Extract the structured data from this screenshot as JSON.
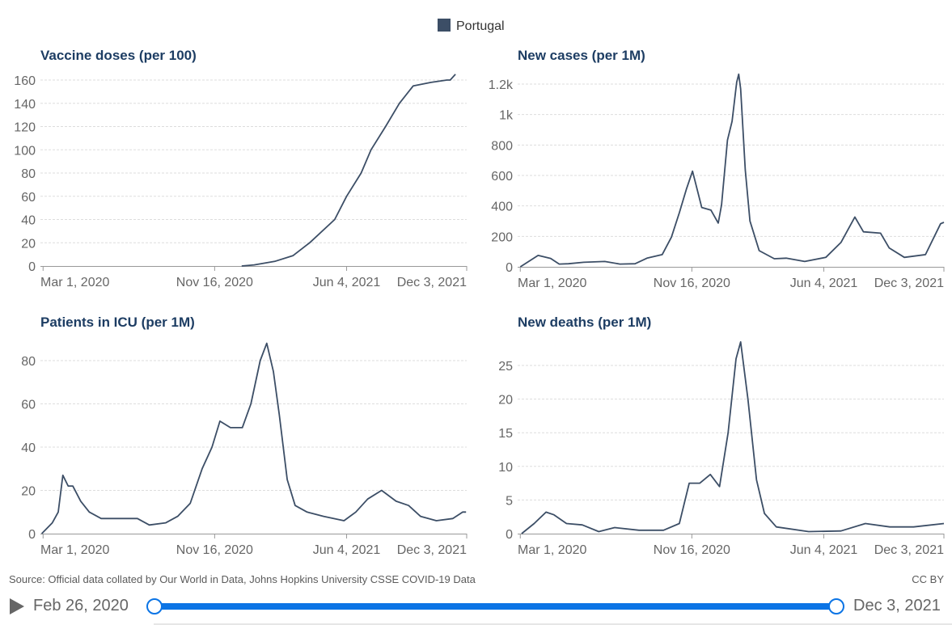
{
  "legend": {
    "label": "Portugal",
    "color": "#3c4e66"
  },
  "footer": {
    "source": "Source: Official data collated by Our World in Data, Johns Hopkins University CSSE COVID-19 Data",
    "license": "CC BY"
  },
  "timeline": {
    "start_label": "Feb 26, 2020",
    "end_label": "Dec 3, 2021",
    "start": "2020-02-26",
    "end": "2021-12-03",
    "accent": "#0b74e5"
  },
  "chart_data": [
    {
      "type": "line",
      "title": "Vaccine doses (per 100)",
      "xlim": [
        "2020-02-26",
        "2021-12-03"
      ],
      "x_ticks": [
        {
          "date": "2020-03-01",
          "label": "Mar 1, 2020"
        },
        {
          "date": "2020-11-16",
          "label": "Nov 16, 2020"
        },
        {
          "date": "2021-06-04",
          "label": "Jun 4, 2021"
        },
        {
          "date": "2021-12-03",
          "label": "Dec 3, 2021"
        }
      ],
      "ylim": [
        0,
        160
      ],
      "y_ticks": [
        {
          "value": 0,
          "label": "0"
        },
        {
          "value": 20,
          "label": "20"
        },
        {
          "value": 40,
          "label": "40"
        },
        {
          "value": 60,
          "label": "60"
        },
        {
          "value": 80,
          "label": "80"
        },
        {
          "value": 100,
          "label": "100"
        },
        {
          "value": 120,
          "label": "120"
        },
        {
          "value": 140,
          "label": "140"
        },
        {
          "value": 160,
          "label": "160"
        }
      ],
      "grid": true,
      "series": [
        {
          "name": "Portugal",
          "points": [
            [
              "2020-12-27",
              0
            ],
            [
              "2021-01-15",
              1
            ],
            [
              "2021-02-15",
              4
            ],
            [
              "2021-03-15",
              9
            ],
            [
              "2021-04-09",
              20
            ],
            [
              "2021-05-17",
              40
            ],
            [
              "2021-06-04",
              60
            ],
            [
              "2021-06-26",
              80
            ],
            [
              "2021-07-11",
              100
            ],
            [
              "2021-08-02",
              120
            ],
            [
              "2021-08-23",
              140
            ],
            [
              "2021-09-13",
              155
            ],
            [
              "2021-10-10",
              158
            ],
            [
              "2021-11-03",
              160
            ],
            [
              "2021-11-08",
              160
            ],
            [
              "2021-11-16",
              165
            ]
          ]
        }
      ]
    },
    {
      "type": "line",
      "title": "New cases (per 1M)",
      "xlim": [
        "2020-02-26",
        "2021-12-03"
      ],
      "x_ticks": [
        {
          "date": "2020-03-01",
          "label": "Mar 1, 2020"
        },
        {
          "date": "2020-11-16",
          "label": "Nov 16, 2020"
        },
        {
          "date": "2021-06-04",
          "label": "Jun 4, 2021"
        },
        {
          "date": "2021-12-03",
          "label": "Dec 3, 2021"
        }
      ],
      "ylim": [
        0,
        1200
      ],
      "y_ticks": [
        {
          "value": 0,
          "label": "0"
        },
        {
          "value": 200,
          "label": "200"
        },
        {
          "value": 400,
          "label": "400"
        },
        {
          "value": 600,
          "label": "600"
        },
        {
          "value": 800,
          "label": "800"
        },
        {
          "value": 1000,
          "label": "1k"
        },
        {
          "value": 1200,
          "label": "1.2k"
        }
      ],
      "grid": true,
      "series": [
        {
          "name": "Portugal",
          "points": [
            [
              "2020-03-01",
              0
            ],
            [
              "2020-03-28",
              75
            ],
            [
              "2020-04-16",
              55
            ],
            [
              "2020-04-29",
              18
            ],
            [
              "2020-05-13",
              20
            ],
            [
              "2020-06-05",
              30
            ],
            [
              "2020-07-07",
              35
            ],
            [
              "2020-07-30",
              18
            ],
            [
              "2020-08-22",
              20
            ],
            [
              "2020-09-09",
              57
            ],
            [
              "2020-10-02",
              80
            ],
            [
              "2020-10-16",
              195
            ],
            [
              "2020-10-28",
              355
            ],
            [
              "2020-11-08",
              513
            ],
            [
              "2020-11-17",
              628
            ],
            [
              "2020-12-01",
              390
            ],
            [
              "2020-12-15",
              372
            ],
            [
              "2020-12-26",
              287
            ],
            [
              "2020-12-31",
              407
            ],
            [
              "2021-01-09",
              832
            ],
            [
              "2021-01-16",
              956
            ],
            [
              "2021-01-23",
              1212
            ],
            [
              "2021-01-26",
              1265
            ],
            [
              "2021-01-29",
              1168
            ],
            [
              "2021-02-05",
              637
            ],
            [
              "2021-02-12",
              301
            ],
            [
              "2021-02-26",
              106
            ],
            [
              "2021-03-21",
              53
            ],
            [
              "2021-04-08",
              57
            ],
            [
              "2021-05-06",
              35
            ],
            [
              "2021-06-07",
              62
            ],
            [
              "2021-06-30",
              160
            ],
            [
              "2021-07-21",
              327
            ],
            [
              "2021-08-03",
              230
            ],
            [
              "2021-08-29",
              221
            ],
            [
              "2021-09-11",
              124
            ],
            [
              "2021-10-04",
              62
            ],
            [
              "2021-11-05",
              80
            ],
            [
              "2021-11-28",
              283
            ],
            [
              "2021-12-03",
              292
            ]
          ]
        }
      ]
    },
    {
      "type": "line",
      "title": "Patients in ICU (per 1M)",
      "xlim": [
        "2020-02-26",
        "2021-12-03"
      ],
      "x_ticks": [
        {
          "date": "2020-03-01",
          "label": "Mar 1, 2020"
        },
        {
          "date": "2020-11-16",
          "label": "Nov 16, 2020"
        },
        {
          "date": "2021-06-04",
          "label": "Jun 4, 2021"
        },
        {
          "date": "2021-12-03",
          "label": "Dec 3, 2021"
        }
      ],
      "ylim": [
        0,
        80
      ],
      "y_ticks": [
        {
          "value": 0,
          "label": "0"
        },
        {
          "value": 20,
          "label": "20"
        },
        {
          "value": 40,
          "label": "40"
        },
        {
          "value": 60,
          "label": "60"
        },
        {
          "value": 80,
          "label": "80"
        }
      ],
      "grid": true,
      "series": [
        {
          "name": "Portugal",
          "points": [
            [
              "2020-02-28",
              0
            ],
            [
              "2020-03-15",
              5
            ],
            [
              "2020-03-24",
              10
            ],
            [
              "2020-03-31",
              27
            ],
            [
              "2020-04-08",
              22
            ],
            [
              "2020-04-15",
              22
            ],
            [
              "2020-04-27",
              15
            ],
            [
              "2020-05-10",
              10
            ],
            [
              "2020-05-28",
              7
            ],
            [
              "2020-06-28",
              7
            ],
            [
              "2020-07-22",
              7
            ],
            [
              "2020-08-09",
              4
            ],
            [
              "2020-09-03",
              5
            ],
            [
              "2020-09-21",
              8
            ],
            [
              "2020-10-10",
              14
            ],
            [
              "2020-10-28",
              30
            ],
            [
              "2020-11-12",
              40
            ],
            [
              "2020-11-24",
              52
            ],
            [
              "2020-12-10",
              49
            ],
            [
              "2020-12-28",
              49
            ],
            [
              "2021-01-10",
              60
            ],
            [
              "2021-01-24",
              80
            ],
            [
              "2021-02-03",
              88
            ],
            [
              "2021-02-13",
              75
            ],
            [
              "2021-02-22",
              55
            ],
            [
              "2021-03-06",
              25
            ],
            [
              "2021-03-18",
              13
            ],
            [
              "2021-04-05",
              10
            ],
            [
              "2021-04-30",
              8
            ],
            [
              "2021-05-31",
              6
            ],
            [
              "2021-06-18",
              10
            ],
            [
              "2021-07-06",
              16
            ],
            [
              "2021-07-27",
              20
            ],
            [
              "2021-08-18",
              15
            ],
            [
              "2021-09-06",
              13
            ],
            [
              "2021-09-24",
              8
            ],
            [
              "2021-10-18",
              6
            ],
            [
              "2021-11-12",
              7
            ],
            [
              "2021-11-27",
              10
            ],
            [
              "2021-12-02",
              10
            ]
          ]
        }
      ]
    },
    {
      "type": "line",
      "title": "New deaths (per 1M)",
      "xlim": [
        "2020-02-26",
        "2021-12-03"
      ],
      "x_ticks": [
        {
          "date": "2020-03-01",
          "label": "Mar 1, 2020"
        },
        {
          "date": "2020-11-16",
          "label": "Nov 16, 2020"
        },
        {
          "date": "2021-06-04",
          "label": "Jun 4, 2021"
        },
        {
          "date": "2021-12-03",
          "label": "Dec 3, 2021"
        }
      ],
      "ylim": [
        0,
        25
      ],
      "y_ticks": [
        {
          "value": 0,
          "label": "0"
        },
        {
          "value": 5,
          "label": "5"
        },
        {
          "value": 10,
          "label": "10"
        },
        {
          "value": 15,
          "label": "15"
        },
        {
          "value": 20,
          "label": "20"
        },
        {
          "value": 25,
          "label": "25"
        }
      ],
      "grid": true,
      "series": [
        {
          "name": "Portugal",
          "points": [
            [
              "2020-03-03",
              0
            ],
            [
              "2020-03-22",
              1.5
            ],
            [
              "2020-04-09",
              3.2
            ],
            [
              "2020-04-21",
              2.8
            ],
            [
              "2020-05-10",
              1.5
            ],
            [
              "2020-06-03",
              1.3
            ],
            [
              "2020-06-28",
              0.3
            ],
            [
              "2020-07-22",
              0.9
            ],
            [
              "2020-08-28",
              0.5
            ],
            [
              "2020-10-04",
              0.5
            ],
            [
              "2020-10-28",
              1.5
            ],
            [
              "2020-11-12",
              7.5
            ],
            [
              "2020-11-28",
              7.5
            ],
            [
              "2020-12-14",
              8.8
            ],
            [
              "2020-12-28",
              7
            ],
            [
              "2021-01-10",
              15
            ],
            [
              "2021-01-22",
              26
            ],
            [
              "2021-01-29",
              28.5
            ],
            [
              "2021-02-09",
              20
            ],
            [
              "2021-02-22",
              8
            ],
            [
              "2021-03-06",
              3
            ],
            [
              "2021-03-24",
              1
            ],
            [
              "2021-05-12",
              0.3
            ],
            [
              "2021-06-30",
              0.4
            ],
            [
              "2021-08-06",
              1.5
            ],
            [
              "2021-09-12",
              1.0
            ],
            [
              "2021-10-18",
              1.0
            ],
            [
              "2021-12-03",
              1.5
            ]
          ]
        }
      ]
    }
  ]
}
